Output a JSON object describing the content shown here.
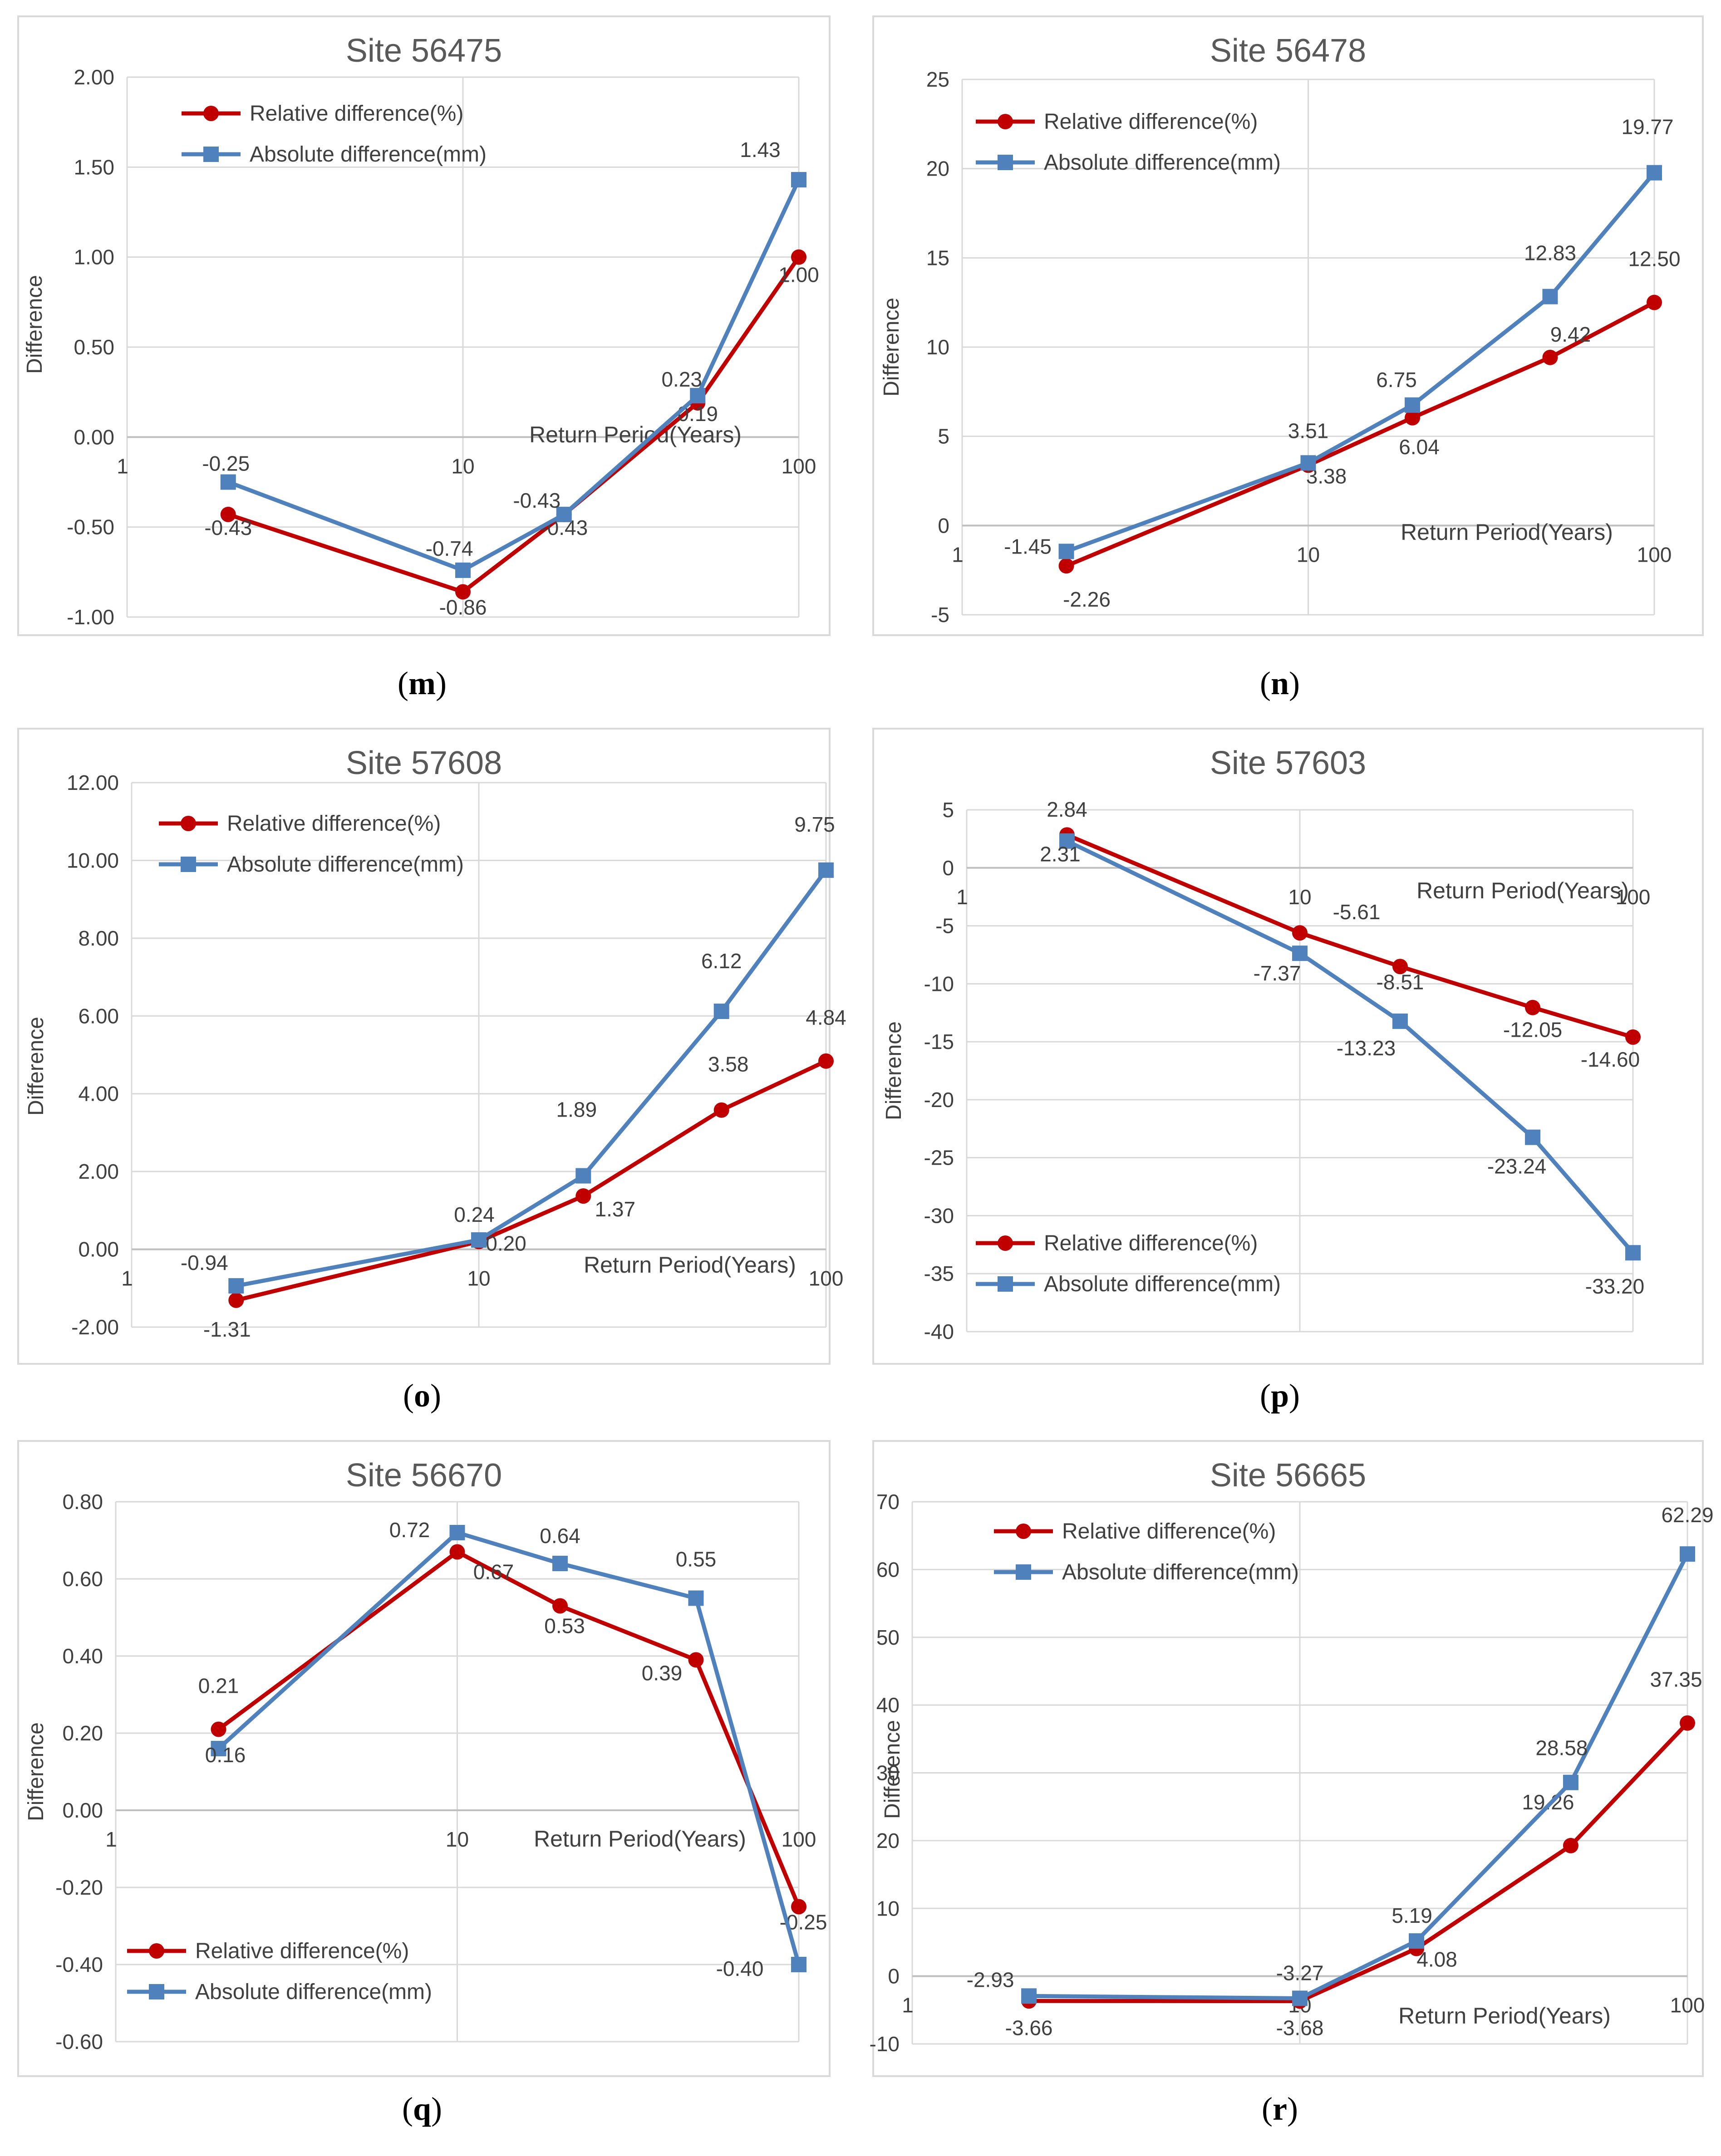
{
  "chart_data": [
    {
      "type": "line",
      "panel": "m",
      "title": "Site 56475",
      "ylabel": "Difference",
      "xlabel": "Return Period(Years)",
      "xscale": "log",
      "xlim": [
        1,
        100
      ],
      "x_ticks": [
        "1",
        "10",
        "100"
      ],
      "ylim": [
        -1.0,
        2.0
      ],
      "y_ticks": [
        "-1.00",
        "-0.50",
        "0.00",
        "0.50",
        "1.00",
        "1.50",
        "2.00"
      ],
      "legend_position": "top-left",
      "x": [
        2,
        10,
        20,
        50,
        100
      ],
      "series": [
        {
          "name": "Relative difference(%)",
          "values": [
            -0.43,
            -0.86,
            -0.43,
            0.19,
            1.0
          ],
          "labels": [
            "-0.43",
            "-0.86",
            "-0.43",
            "0.19",
            "1.00"
          ]
        },
        {
          "name": "Absolute difference(mm)",
          "values": [
            -0.25,
            -0.74,
            -0.43,
            0.23,
            1.43
          ],
          "labels": [
            "-0.25",
            "-0.74",
            "-0.43",
            "0.23",
            "1.43"
          ]
        }
      ]
    },
    {
      "type": "line",
      "panel": "n",
      "title": "Site 56478",
      "ylabel": "Difference",
      "xlabel": "Return Period(Years)",
      "xscale": "log",
      "xlim": [
        1,
        100
      ],
      "x_ticks": [
        "1",
        "10",
        "100"
      ],
      "ylim": [
        -5,
        25
      ],
      "y_ticks": [
        "-5",
        "0",
        "5",
        "10",
        "15",
        "20",
        "25"
      ],
      "legend_position": "top-left",
      "x": [
        2,
        10,
        20,
        50,
        100
      ],
      "series": [
        {
          "name": "Relative difference(%)",
          "values": [
            -2.26,
            3.38,
            6.04,
            9.42,
            12.5
          ],
          "labels": [
            "-2.26",
            "3.38",
            "6.04",
            "9.42",
            "12.50"
          ]
        },
        {
          "name": "Absolute difference(mm)",
          "values": [
            -1.45,
            3.51,
            6.75,
            12.83,
            19.77
          ],
          "labels": [
            "-1.45",
            "3.51",
            "6.75",
            "12.83",
            "19.77"
          ]
        }
      ]
    },
    {
      "type": "line",
      "panel": "o",
      "title": "Site 57608",
      "ylabel": "Difference",
      "xlabel": "Return Period(Years)",
      "xscale": "log",
      "xlim": [
        1,
        100
      ],
      "x_ticks": [
        "1",
        "10",
        "100"
      ],
      "ylim": [
        -2.0,
        12.0
      ],
      "y_ticks": [
        "-2.00",
        "0.00",
        "2.00",
        "4.00",
        "6.00",
        "8.00",
        "10.00",
        "12.00"
      ],
      "legend_position": "top-left",
      "x": [
        2,
        10,
        20,
        50,
        100
      ],
      "series": [
        {
          "name": "Relative difference(%)",
          "values": [
            -1.31,
            0.2,
            1.37,
            3.58,
            4.84
          ],
          "labels": [
            "-1.31",
            "0.20",
            "1.37",
            "3.58",
            "4.84"
          ]
        },
        {
          "name": "Absolute difference(mm)",
          "values": [
            -0.94,
            0.24,
            1.89,
            6.12,
            9.75
          ],
          "labels": [
            "-0.94",
            "0.24",
            "1.89",
            "6.12",
            "9.75"
          ]
        }
      ]
    },
    {
      "type": "line",
      "panel": "p",
      "title": "Site 57603",
      "ylabel": "Difference",
      "xlabel": "Return Period(Years)",
      "xscale": "log",
      "xlim": [
        1,
        100
      ],
      "x_ticks": [
        "1",
        "10",
        "100"
      ],
      "ylim": [
        -40,
        5
      ],
      "y_ticks": [
        "-40",
        "-35",
        "-30",
        "-25",
        "-20",
        "-15",
        "-10",
        "-5",
        "0",
        "5"
      ],
      "legend_position": "bottom-left",
      "x": [
        2,
        10,
        20,
        50,
        100
      ],
      "series": [
        {
          "name": "Relative difference(%)",
          "values": [
            2.84,
            -5.61,
            -8.51,
            -12.05,
            -14.6
          ],
          "labels": [
            "2.84",
            "-5.61",
            "-8.51",
            "-12.05",
            "-14.60"
          ]
        },
        {
          "name": "Absolute difference(mm)",
          "values": [
            2.31,
            -7.37,
            -13.23,
            -23.24,
            -33.2
          ],
          "labels": [
            "2.31",
            "-7.37",
            "-13.23",
            "-23.24",
            "-33.20"
          ]
        }
      ]
    },
    {
      "type": "line",
      "panel": "q",
      "title": "Site 56670",
      "ylabel": "Difference",
      "xlabel": "Return Period(Years)",
      "xscale": "log",
      "xlim": [
        1,
        100
      ],
      "x_ticks": [
        "1",
        "10",
        "100"
      ],
      "ylim": [
        -0.6,
        0.8
      ],
      "y_ticks": [
        "-0.60",
        "-0.40",
        "-0.20",
        "0.00",
        "0.20",
        "0.40",
        "0.60",
        "0.80"
      ],
      "legend_position": "bottom-left",
      "x": [
        2,
        10,
        20,
        50,
        100
      ],
      "series": [
        {
          "name": "Relative difference(%)",
          "values": [
            0.21,
            0.67,
            0.53,
            0.39,
            -0.25
          ],
          "labels": [
            "0.21",
            "0.67",
            "0.53",
            "0.39",
            "-0.25"
          ]
        },
        {
          "name": "Absolute difference(mm)",
          "values": [
            0.16,
            0.72,
            0.64,
            0.55,
            -0.4
          ],
          "labels": [
            "0.16",
            "0.72",
            "0.64",
            "0.55",
            "-0.40"
          ]
        }
      ]
    },
    {
      "type": "line",
      "panel": "r",
      "title": "Site 56665",
      "ylabel": "Difference",
      "xlabel": "Return Period(Years)",
      "xscale": "log",
      "xlim": [
        1,
        100
      ],
      "x_ticks": [
        "1",
        "10",
        "100"
      ],
      "ylim": [
        -10,
        70
      ],
      "y_ticks": [
        "-10",
        "0",
        "10",
        "20",
        "30",
        "40",
        "50",
        "60",
        "70"
      ],
      "legend_position": "top-left",
      "x": [
        2,
        10,
        20,
        50,
        100
      ],
      "series": [
        {
          "name": "Relative difference(%)",
          "values": [
            -3.66,
            -3.68,
            4.08,
            19.26,
            37.35
          ],
          "labels": [
            "-3.66",
            "-3.68",
            "4.08",
            "19.26",
            "37.35"
          ]
        },
        {
          "name": "Absolute difference(mm)",
          "values": [
            -2.93,
            -3.27,
            5.19,
            28.58,
            62.29
          ],
          "labels": [
            "-2.93",
            "-3.27",
            "5.19",
            "28.58",
            "62.29"
          ]
        }
      ]
    }
  ],
  "colors": {
    "relative": "#c00000",
    "absolute": "#4f81bd",
    "grid": "#d9d9d9",
    "frame": "#d9d9d9",
    "text": "#404040"
  }
}
